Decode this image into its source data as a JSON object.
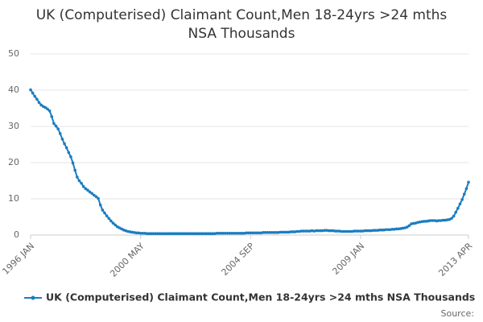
{
  "chart_data": {
    "type": "line",
    "title": [
      "UK (Computerised) Claimant Count,Men 18-24yrs >24 mths",
      "NSA Thousands"
    ],
    "source": "Source:",
    "categories": [
      "1996 JAN",
      null,
      null,
      null,
      null,
      null,
      null,
      null,
      null,
      null,
      null,
      null,
      null,
      null,
      null,
      null,
      null,
      null,
      null,
      null,
      null,
      null,
      null,
      null,
      null,
      null,
      null,
      null,
      null,
      null,
      null,
      null,
      null,
      null,
      null,
      null,
      null,
      null,
      null,
      null,
      null,
      null,
      null,
      null,
      null,
      null,
      null,
      null,
      null,
      null,
      null,
      null,
      "2000 MAY",
      null,
      null,
      null,
      null,
      null,
      null,
      null,
      null,
      null,
      null,
      null,
      null,
      null,
      null,
      null,
      null,
      null,
      null,
      null,
      null,
      null,
      null,
      null,
      null,
      null,
      null,
      null,
      null,
      null,
      null,
      null,
      null,
      null,
      null,
      null,
      null,
      null,
      null,
      null,
      null,
      null,
      null,
      null,
      null,
      null,
      null,
      null,
      null,
      null,
      null,
      null,
      "2004 SEP",
      null,
      null,
      null,
      null,
      null,
      null,
      null,
      null,
      null,
      null,
      null,
      null,
      null,
      null,
      null,
      null,
      null,
      null,
      null,
      null,
      null,
      null,
      null,
      null,
      null,
      null,
      null,
      null,
      null,
      null,
      null,
      null,
      null,
      null,
      null,
      null,
      null,
      null,
      null,
      null,
      null,
      null,
      null,
      null,
      null,
      null,
      null,
      null,
      null,
      null,
      null,
      "2009 JAN",
      null,
      null,
      null,
      null,
      null,
      null,
      null,
      null,
      null,
      null,
      null,
      null,
      null,
      null,
      null,
      null,
      null,
      null,
      null,
      null,
      null,
      null,
      null,
      null,
      null,
      null,
      null,
      null,
      null,
      null,
      null,
      null,
      null,
      null,
      null,
      null,
      null,
      null,
      null,
      null,
      null,
      null,
      null,
      null,
      null,
      null,
      null,
      null,
      null,
      null,
      "2013 APR"
    ],
    "series": [
      {
        "name": "UK (Computerised) Claimant Count,Men 18-24yrs >24 mths NSA Thousands",
        "color": "#1a7dc0",
        "values": [
          40.1,
          39.2,
          38.3,
          37.5,
          36.6,
          35.9,
          35.5,
          35.2,
          34.8,
          34.3,
          32.7,
          30.8,
          30.1,
          29.3,
          28.0,
          26.5,
          25.2,
          24.1,
          22.8,
          21.6,
          19.9,
          17.9,
          16.0,
          15.0,
          14.3,
          13.4,
          12.8,
          12.4,
          11.9,
          11.5,
          11.0,
          10.6,
          10.1,
          8.3,
          6.9,
          6.1,
          5.3,
          4.6,
          3.9,
          3.3,
          2.8,
          2.3,
          2.0,
          1.7,
          1.4,
          1.2,
          1.0,
          0.9,
          0.8,
          0.7,
          0.6,
          0.6,
          0.5,
          0.5,
          0.5,
          0.4,
          0.4,
          0.4,
          0.4,
          0.4,
          0.4,
          0.4,
          0.4,
          0.4,
          0.4,
          0.4,
          0.4,
          0.4,
          0.4,
          0.4,
          0.4,
          0.4,
          0.4,
          0.4,
          0.4,
          0.4,
          0.4,
          0.4,
          0.4,
          0.4,
          0.4,
          0.4,
          0.4,
          0.4,
          0.4,
          0.4,
          0.4,
          0.4,
          0.5,
          0.5,
          0.5,
          0.5,
          0.5,
          0.5,
          0.5,
          0.5,
          0.5,
          0.5,
          0.5,
          0.5,
          0.5,
          0.5,
          0.6,
          0.6,
          0.6,
          0.6,
          0.6,
          0.6,
          0.6,
          0.6,
          0.7,
          0.7,
          0.7,
          0.7,
          0.7,
          0.7,
          0.7,
          0.7,
          0.8,
          0.8,
          0.8,
          0.8,
          0.8,
          0.9,
          0.9,
          0.9,
          1.0,
          1.0,
          1.1,
          1.1,
          1.1,
          1.1,
          1.1,
          1.2,
          1.1,
          1.2,
          1.2,
          1.2,
          1.2,
          1.3,
          1.3,
          1.2,
          1.2,
          1.2,
          1.1,
          1.1,
          1.1,
          1.0,
          1.0,
          1.0,
          1.0,
          1.0,
          1.0,
          1.1,
          1.1,
          1.1,
          1.1,
          1.1,
          1.2,
          1.2,
          1.2,
          1.2,
          1.3,
          1.3,
          1.3,
          1.4,
          1.4,
          1.4,
          1.5,
          1.5,
          1.5,
          1.6,
          1.6,
          1.7,
          1.7,
          1.8,
          1.9,
          2.0,
          2.2,
          2.6,
          3.1,
          3.2,
          3.3,
          3.5,
          3.6,
          3.7,
          3.8,
          3.8,
          3.9,
          4.0,
          4.0,
          4.0,
          3.9,
          4.0,
          4.0,
          4.1,
          4.1,
          4.2,
          4.3,
          4.6,
          5.2,
          6.3,
          7.4,
          8.6,
          9.8,
          11.3,
          12.8,
          14.6
        ]
      }
    ],
    "ylim": [
      0,
      50
    ],
    "yticks": [
      0,
      10,
      20,
      30,
      40,
      50
    ],
    "grid": true,
    "legend": "bottom"
  }
}
